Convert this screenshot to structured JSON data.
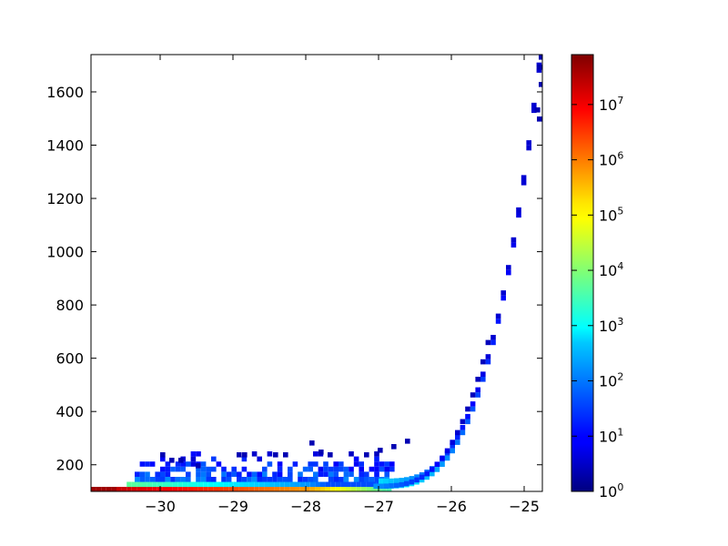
{
  "chart_data": {
    "type": "heatmap",
    "title": "",
    "xlabel": "",
    "ylabel": "",
    "xlim": [
      -30.95,
      -24.75
    ],
    "ylim": [
      100,
      1740
    ],
    "x_ticks": [
      -30,
      -29,
      -28,
      -27,
      -26,
      -25
    ],
    "x_tick_labels": [
      "−30",
      "−29",
      "−28",
      "−27",
      "−26",
      "−25"
    ],
    "y_ticks": [
      200,
      400,
      600,
      800,
      1000,
      1200,
      1400,
      1600
    ],
    "y_tick_labels": [
      "200",
      "400",
      "600",
      "800",
      "1000",
      "1200",
      "1400",
      "1600"
    ],
    "grid": false,
    "colormap": "jet",
    "color_scale": "log",
    "colorbar": {
      "range": [
        1,
        80000000
      ],
      "tick_labels": [
        {
          "base": "10",
          "exp": "0",
          "value": 1
        },
        {
          "base": "10",
          "exp": "1",
          "value": 10
        },
        {
          "base": "10",
          "exp": "2",
          "value": 100
        },
        {
          "base": "10",
          "exp": "3",
          "value": 1000
        },
        {
          "base": "10",
          "exp": "4",
          "value": 10000
        },
        {
          "base": "10",
          "exp": "5",
          "value": 100000
        },
        {
          "base": "10",
          "exp": "6",
          "value": 1000000
        },
        {
          "base": "10",
          "exp": "7",
          "value": 10000000
        }
      ]
    },
    "description": "2D histogram of counts: dense band along y~100 from x=-31 to -27, sparse scatter up to y~250 for x in [-30.3,-26.8], then a thin ridge rising steeply from y~150 at x=-27 to y~1740 at x=-24.8."
  }
}
